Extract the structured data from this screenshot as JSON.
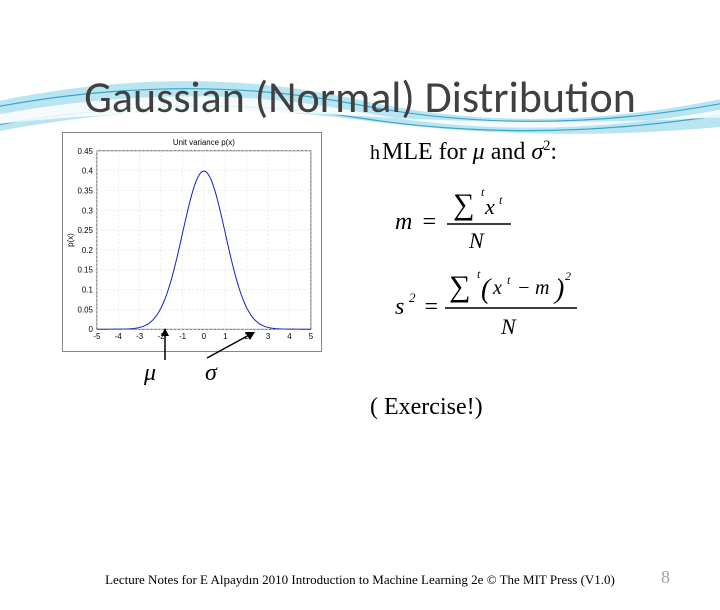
{
  "slide": {
    "title": "Gaussian (Normal) Distribution",
    "footer": "Lecture Notes for E Alpaydın 2010 Introduction to Machine Learning 2e © The MIT Press (V1.0)",
    "page_number": "8"
  },
  "bullet": {
    "icon_glyph": "h",
    "prefix": "MLE for ",
    "mu": "μ",
    "and": " and ",
    "sigma": "σ",
    "sup": "2",
    "colon": ":"
  },
  "formulas": {
    "m_lhs": "m",
    "m_eq": "=",
    "sum": "∑",
    "x": "x",
    "t": "t",
    "N": "N",
    "s2_lhs": "s",
    "s2_sup": "2",
    "minus": "−",
    "m_rhs": "m",
    "sq_sup": "2",
    "lparen": "(",
    "rparen": ")"
  },
  "exercise": "( Exercise!)",
  "labels": {
    "mu": "μ",
    "sigma": "σ"
  },
  "chart": {
    "title_text": "Unit variance p(x)",
    "ylabel": "p(x)",
    "xlim": [
      -5,
      5
    ],
    "ylim": [
      0,
      0.45
    ],
    "xticks": [
      -5,
      -4,
      -3,
      -2,
      -1,
      0,
      1,
      2,
      3,
      4,
      5
    ],
    "yticks": [
      0,
      0.05,
      0.1,
      0.15,
      0.2,
      0.25,
      0.3,
      0.35,
      0.4,
      0.45
    ],
    "line_color": "#1020c0",
    "grid_color": "#cccccc",
    "background_color": "#ffffff",
    "line_width": 1,
    "mu": 0,
    "sigma": 1
  },
  "theme": {
    "wave_color_outer": "#7fd0e8",
    "wave_color_inner": "#ffffff",
    "wave_stroke": "#3ba5c8"
  }
}
